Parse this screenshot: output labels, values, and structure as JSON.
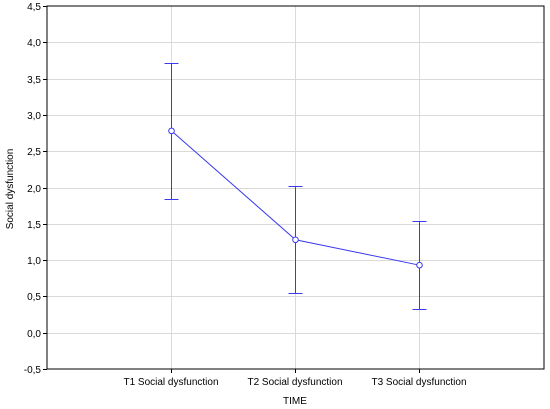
{
  "chart_data": {
    "type": "line",
    "title": "",
    "xlabel": "TIME",
    "ylabel": "Social dysfunction",
    "ylim": [
      -0.5,
      4.5
    ],
    "yticks": [
      -0.5,
      0.0,
      0.5,
      1.0,
      1.5,
      2.0,
      2.5,
      3.0,
      3.5,
      4.0,
      4.5
    ],
    "ytick_labels": [
      "-0,5",
      "0,0",
      "0,5",
      "1,0",
      "1,5",
      "2,0",
      "2,5",
      "3,0",
      "3,5",
      "4,0",
      "4,5"
    ],
    "categories": [
      "T1 Social dysfunction",
      "T2 Social dysfunction",
      "T3 Social dysfunction"
    ],
    "series": [
      {
        "values": [
          2.78,
          1.28,
          0.93
        ],
        "error_low": [
          1.84,
          0.54,
          0.33
        ],
        "error_high": [
          3.72,
          2.02,
          1.54
        ]
      }
    ],
    "grid": true,
    "series_color": "#3a3af0",
    "grid_color": "#d9d9d9"
  }
}
